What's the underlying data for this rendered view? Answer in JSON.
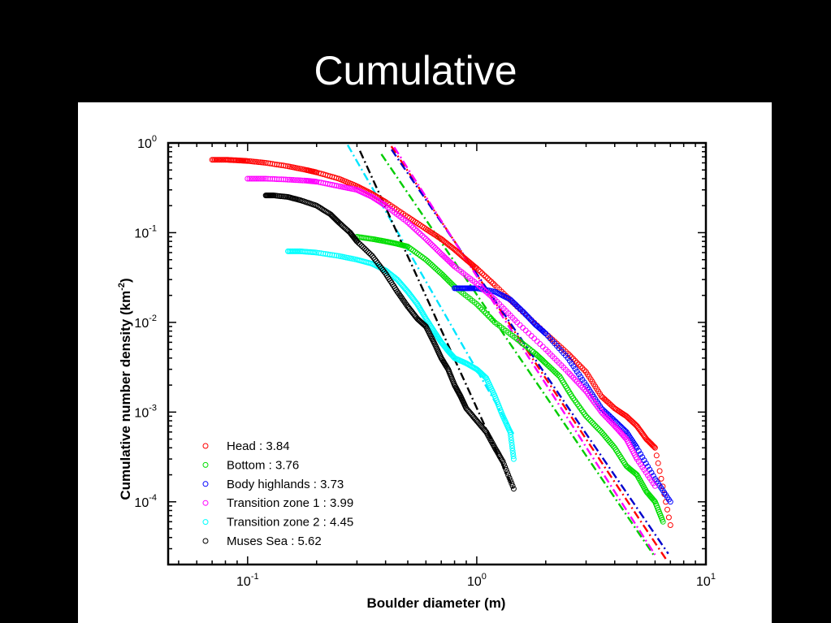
{
  "slide": {
    "title": "Cumulative"
  },
  "chart_data": {
    "type": "scatter",
    "xlabel": "Boulder diameter (m)",
    "ylabel": "Cumulative number density (km",
    "ylabel_sup": "-2",
    "ylabel_close": ")",
    "xscale": "log",
    "yscale": "log",
    "xlim": [
      0.045,
      10
    ],
    "ylim": [
      2e-05,
      1
    ],
    "x_ticks": [
      {
        "value": 0.1,
        "base": "10",
        "exp": "-1"
      },
      {
        "value": 1,
        "base": "10",
        "exp": "0"
      },
      {
        "value": 10,
        "base": "10",
        "exp": "1"
      }
    ],
    "y_ticks": [
      {
        "value": 1,
        "base": "10",
        "exp": "0"
      },
      {
        "value": 0.1,
        "base": "10",
        "exp": "-1"
      },
      {
        "value": 0.01,
        "base": "10",
        "exp": "-2"
      },
      {
        "value": 0.001,
        "base": "10",
        "exp": "-3"
      },
      {
        "value": 0.0001,
        "base": "10",
        "exp": "-4"
      }
    ],
    "grid": false,
    "legend_position": "bottom-left",
    "series": [
      {
        "name": "Head : 3.84",
        "color": "#ff0000",
        "marker": "open-circle",
        "points": [
          [
            0.07,
            0.65
          ],
          [
            0.08,
            0.65
          ],
          [
            0.09,
            0.64
          ],
          [
            0.1,
            0.63
          ],
          [
            0.12,
            0.6
          ],
          [
            0.15,
            0.55
          ],
          [
            0.18,
            0.5
          ],
          [
            0.2,
            0.47
          ],
          [
            0.25,
            0.4
          ],
          [
            0.3,
            0.33
          ],
          [
            0.35,
            0.27
          ],
          [
            0.4,
            0.22
          ],
          [
            0.5,
            0.15
          ],
          [
            0.6,
            0.11
          ],
          [
            0.7,
            0.085
          ],
          [
            0.8,
            0.065
          ],
          [
            0.9,
            0.05
          ],
          [
            1.0,
            0.04
          ],
          [
            1.2,
            0.026
          ],
          [
            1.5,
            0.015
          ],
          [
            2.0,
            0.0075
          ],
          [
            2.5,
            0.0045
          ],
          [
            3.0,
            0.0028
          ],
          [
            3.5,
            0.0015
          ],
          [
            4.0,
            0.0011
          ],
          [
            4.5,
            0.0009
          ],
          [
            5.0,
            0.0007
          ],
          [
            5.5,
            0.0005
          ],
          [
            6.0,
            0.0004
          ],
          [
            7.0,
            5.5e-05
          ]
        ],
        "fit_slope": -3.84,
        "fit_x": [
          0.3,
          9.5
        ],
        "fit_anchor": [
          1.0,
          0.034
        ],
        "fit_color": "#ff0000"
      },
      {
        "name": "Bottom : 3.76",
        "color": "#00dd00",
        "marker": "open-circle",
        "points": [
          [
            0.3,
            0.09
          ],
          [
            0.35,
            0.085
          ],
          [
            0.4,
            0.08
          ],
          [
            0.45,
            0.075
          ],
          [
            0.5,
            0.07
          ],
          [
            0.6,
            0.05
          ],
          [
            0.7,
            0.035
          ],
          [
            0.8,
            0.025
          ],
          [
            1.0,
            0.016
          ],
          [
            1.2,
            0.01
          ],
          [
            1.5,
            0.0065
          ],
          [
            1.8,
            0.0045
          ],
          [
            2.0,
            0.0035
          ],
          [
            2.3,
            0.0025
          ],
          [
            2.6,
            0.0015
          ],
          [
            3.0,
            0.0009
          ],
          [
            3.5,
            0.0006
          ],
          [
            4.0,
            0.0004
          ],
          [
            4.5,
            0.00025
          ],
          [
            5.0,
            0.0002
          ],
          [
            5.5,
            0.00013
          ],
          [
            6.0,
            0.0001
          ],
          [
            6.5,
            6e-05
          ]
        ],
        "fit_slope": -3.76,
        "fit_x": [
          0.28,
          6.5
        ],
        "fit_anchor": [
          1.0,
          0.0204
        ],
        "fit_color": "#00cc00"
      },
      {
        "name": "Body highlands : 3.73",
        "color": "#0000ff",
        "marker": "open-circle",
        "points": [
          [
            0.8,
            0.024
          ],
          [
            0.9,
            0.024
          ],
          [
            1.0,
            0.024
          ],
          [
            1.2,
            0.022
          ],
          [
            1.4,
            0.018
          ],
          [
            1.6,
            0.013
          ],
          [
            1.8,
            0.0095
          ],
          [
            2.0,
            0.0075
          ],
          [
            2.5,
            0.004
          ],
          [
            3.0,
            0.002
          ],
          [
            3.5,
            0.0011
          ],
          [
            4.0,
            0.0008
          ],
          [
            4.5,
            0.0006
          ],
          [
            5.0,
            0.0004
          ],
          [
            6.0,
            0.00018
          ],
          [
            7.0,
            0.0001
          ]
        ],
        "fit_slope": -3.73,
        "fit_x": [
          0.3,
          9.7
        ],
        "fit_anchor": [
          1.0,
          0.0346
        ],
        "fit_color": "#0000cc"
      },
      {
        "name": "Transition zone 1 : 3.99",
        "color": "#ff00ff",
        "marker": "open-circle",
        "points": [
          [
            0.1,
            0.4
          ],
          [
            0.12,
            0.4
          ],
          [
            0.15,
            0.39
          ],
          [
            0.18,
            0.38
          ],
          [
            0.2,
            0.37
          ],
          [
            0.25,
            0.33
          ],
          [
            0.3,
            0.3
          ],
          [
            0.35,
            0.25
          ],
          [
            0.4,
            0.2
          ],
          [
            0.5,
            0.13
          ],
          [
            0.6,
            0.085
          ],
          [
            0.7,
            0.058
          ],
          [
            0.8,
            0.042
          ],
          [
            1.0,
            0.027
          ],
          [
            1.2,
            0.018
          ],
          [
            1.5,
            0.01
          ],
          [
            2.0,
            0.005
          ],
          [
            2.5,
            0.0028
          ],
          [
            3.0,
            0.0017
          ],
          [
            3.5,
            0.001
          ],
          [
            4.0,
            0.0007
          ],
          [
            4.5,
            0.0005
          ],
          [
            5.0,
            0.0003
          ],
          [
            6.0,
            0.00015
          ]
        ],
        "fit_slope": -3.99,
        "fit_x": [
          0.3,
          6.0
        ],
        "fit_anchor": [
          1.0,
          0.0327
        ],
        "fit_color": "#ff00ff"
      },
      {
        "name": "Transition zone 2 : 4.45",
        "color": "#00ffff",
        "marker": "open-circle",
        "points": [
          [
            0.15,
            0.062
          ],
          [
            0.17,
            0.062
          ],
          [
            0.2,
            0.06
          ],
          [
            0.25,
            0.055
          ],
          [
            0.3,
            0.05
          ],
          [
            0.35,
            0.045
          ],
          [
            0.4,
            0.038
          ],
          [
            0.45,
            0.03
          ],
          [
            0.5,
            0.022
          ],
          [
            0.55,
            0.016
          ],
          [
            0.6,
            0.011
          ],
          [
            0.65,
            0.008
          ],
          [
            0.7,
            0.006
          ],
          [
            0.75,
            0.0048
          ],
          [
            0.8,
            0.004
          ],
          [
            0.9,
            0.0035
          ],
          [
            1.0,
            0.003
          ],
          [
            1.1,
            0.0024
          ],
          [
            1.2,
            0.0015
          ],
          [
            1.3,
            0.0009
          ],
          [
            1.4,
            0.0006
          ],
          [
            1.45,
            0.0003
          ]
        ],
        "fit_slope": -4.45,
        "fit_x": [
          0.18,
          1.45
        ],
        "fit_anchor": [
          1.0,
          0.00295
        ],
        "fit_color": "#00e5ff"
      },
      {
        "name": "Muses Sea : 5.62",
        "color": "#000000",
        "marker": "open-circle",
        "points": [
          [
            0.12,
            0.26
          ],
          [
            0.13,
            0.26
          ],
          [
            0.15,
            0.25
          ],
          [
            0.17,
            0.23
          ],
          [
            0.2,
            0.2
          ],
          [
            0.23,
            0.16
          ],
          [
            0.25,
            0.13
          ],
          [
            0.28,
            0.1
          ],
          [
            0.3,
            0.08
          ],
          [
            0.35,
            0.055
          ],
          [
            0.4,
            0.035
          ],
          [
            0.45,
            0.022
          ],
          [
            0.5,
            0.015
          ],
          [
            0.55,
            0.011
          ],
          [
            0.6,
            0.009
          ],
          [
            0.65,
            0.006
          ],
          [
            0.7,
            0.004
          ],
          [
            0.75,
            0.003
          ],
          [
            0.8,
            0.002
          ],
          [
            0.85,
            0.0015
          ],
          [
            0.9,
            0.0011
          ],
          [
            1.0,
            0.0008
          ],
          [
            1.1,
            0.0006
          ],
          [
            1.2,
            0.0004
          ],
          [
            1.3,
            0.00028
          ],
          [
            1.45,
            0.00014
          ]
        ],
        "fit_slope": -5.62,
        "fit_x": [
          0.21,
          1.45
        ],
        "fit_anchor": [
          1.0,
          0.00111
        ],
        "fit_color": "#000000"
      }
    ]
  }
}
